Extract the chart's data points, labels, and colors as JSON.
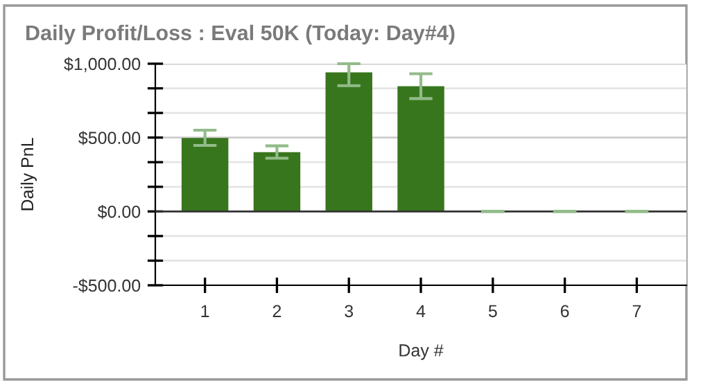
{
  "chart_data": {
    "type": "bar",
    "title": "Daily Profit/Loss : Eval 50K (Today: Day#4)",
    "xlabel": "Day #",
    "ylabel": "Daily PnL",
    "categories": [
      "1",
      "2",
      "3",
      "4",
      "5",
      "6",
      "7"
    ],
    "values": [
      497,
      401,
      941,
      848,
      0,
      0,
      0
    ],
    "errors": [
      [
        447,
        550
      ],
      [
        360,
        444
      ],
      [
        851,
        1000
      ],
      [
        764,
        932
      ],
      [
        0,
        0
      ],
      [
        0,
        0
      ],
      [
        0,
        0
      ]
    ],
    "color": "#38761d",
    "ylim": [
      -500,
      1000
    ],
    "yticks": [
      {
        "value": -500,
        "label": "-$500.00"
      },
      {
        "value": -333.33,
        "label": null
      },
      {
        "value": -166.67,
        "label": null
      },
      {
        "value": 0,
        "label": "$0.00"
      },
      {
        "value": 166.67,
        "label": null
      },
      {
        "value": 333.33,
        "label": null
      },
      {
        "value": 500,
        "label": "$500.00"
      },
      {
        "value": 666.67,
        "label": null
      },
      {
        "value": 833.33,
        "label": null
      },
      {
        "value": 1000,
        "label": "$1,000.00"
      }
    ],
    "grid": "y",
    "legend": false
  }
}
